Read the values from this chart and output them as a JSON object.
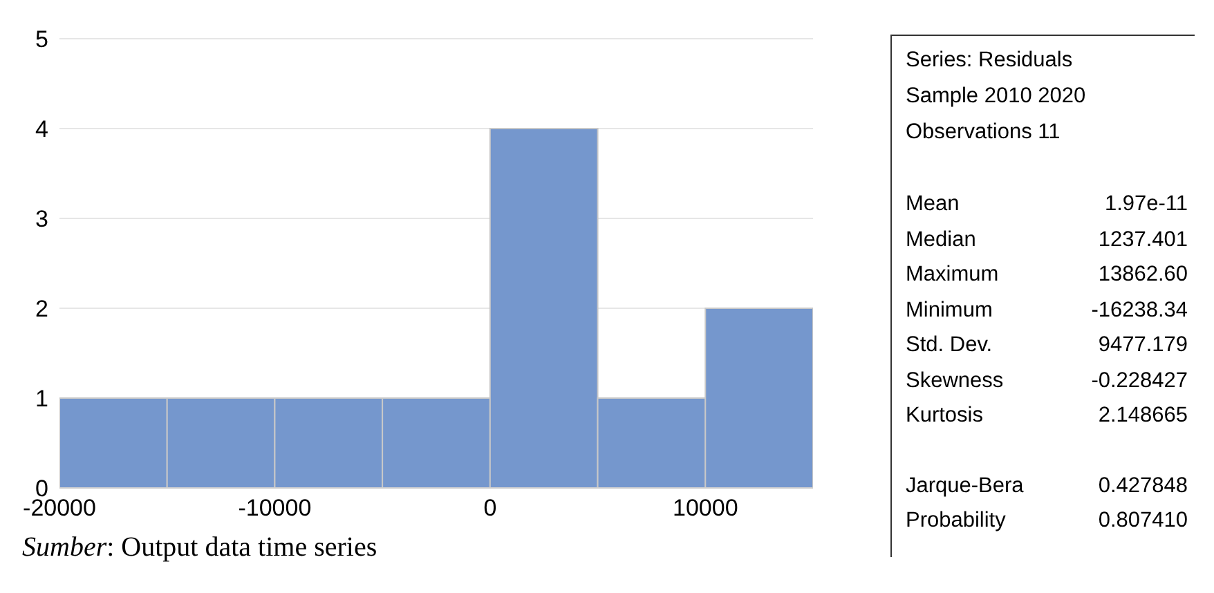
{
  "chart_data": [
    {
      "type": "histogram",
      "bins": [
        -20000,
        -15000,
        -10000,
        -5000,
        0,
        5000,
        10000,
        15000
      ],
      "values": [
        1,
        1,
        1,
        1,
        4,
        1,
        2
      ],
      "color": "#7597cd",
      "xlim": [
        -20000,
        15000
      ],
      "xticks": [
        -20000,
        -10000,
        0,
        10000
      ],
      "ylim": [
        0,
        5
      ],
      "yticks": [
        0,
        1,
        2,
        3,
        4,
        5
      ],
      "grid": "y",
      "annotations": [
        "Sumber: Output data time series"
      ]
    },
    {
      "type": "other",
      "annotations": [
        "Series: Residuals",
        "Sample 2010 2020",
        "Observations 11",
        "Mean",
        "1.97e-11",
        "Median",
        "1237.401",
        "Maximum",
        "13862.60",
        "Minimum",
        "-16238.34",
        "Std. Dev.",
        "9477.179",
        "Skewness",
        "-0.228427",
        "Kurtosis",
        "2.148665",
        "Jarque-Bera",
        "0.427848",
        "Probability",
        "0.807410"
      ]
    }
  ]
}
